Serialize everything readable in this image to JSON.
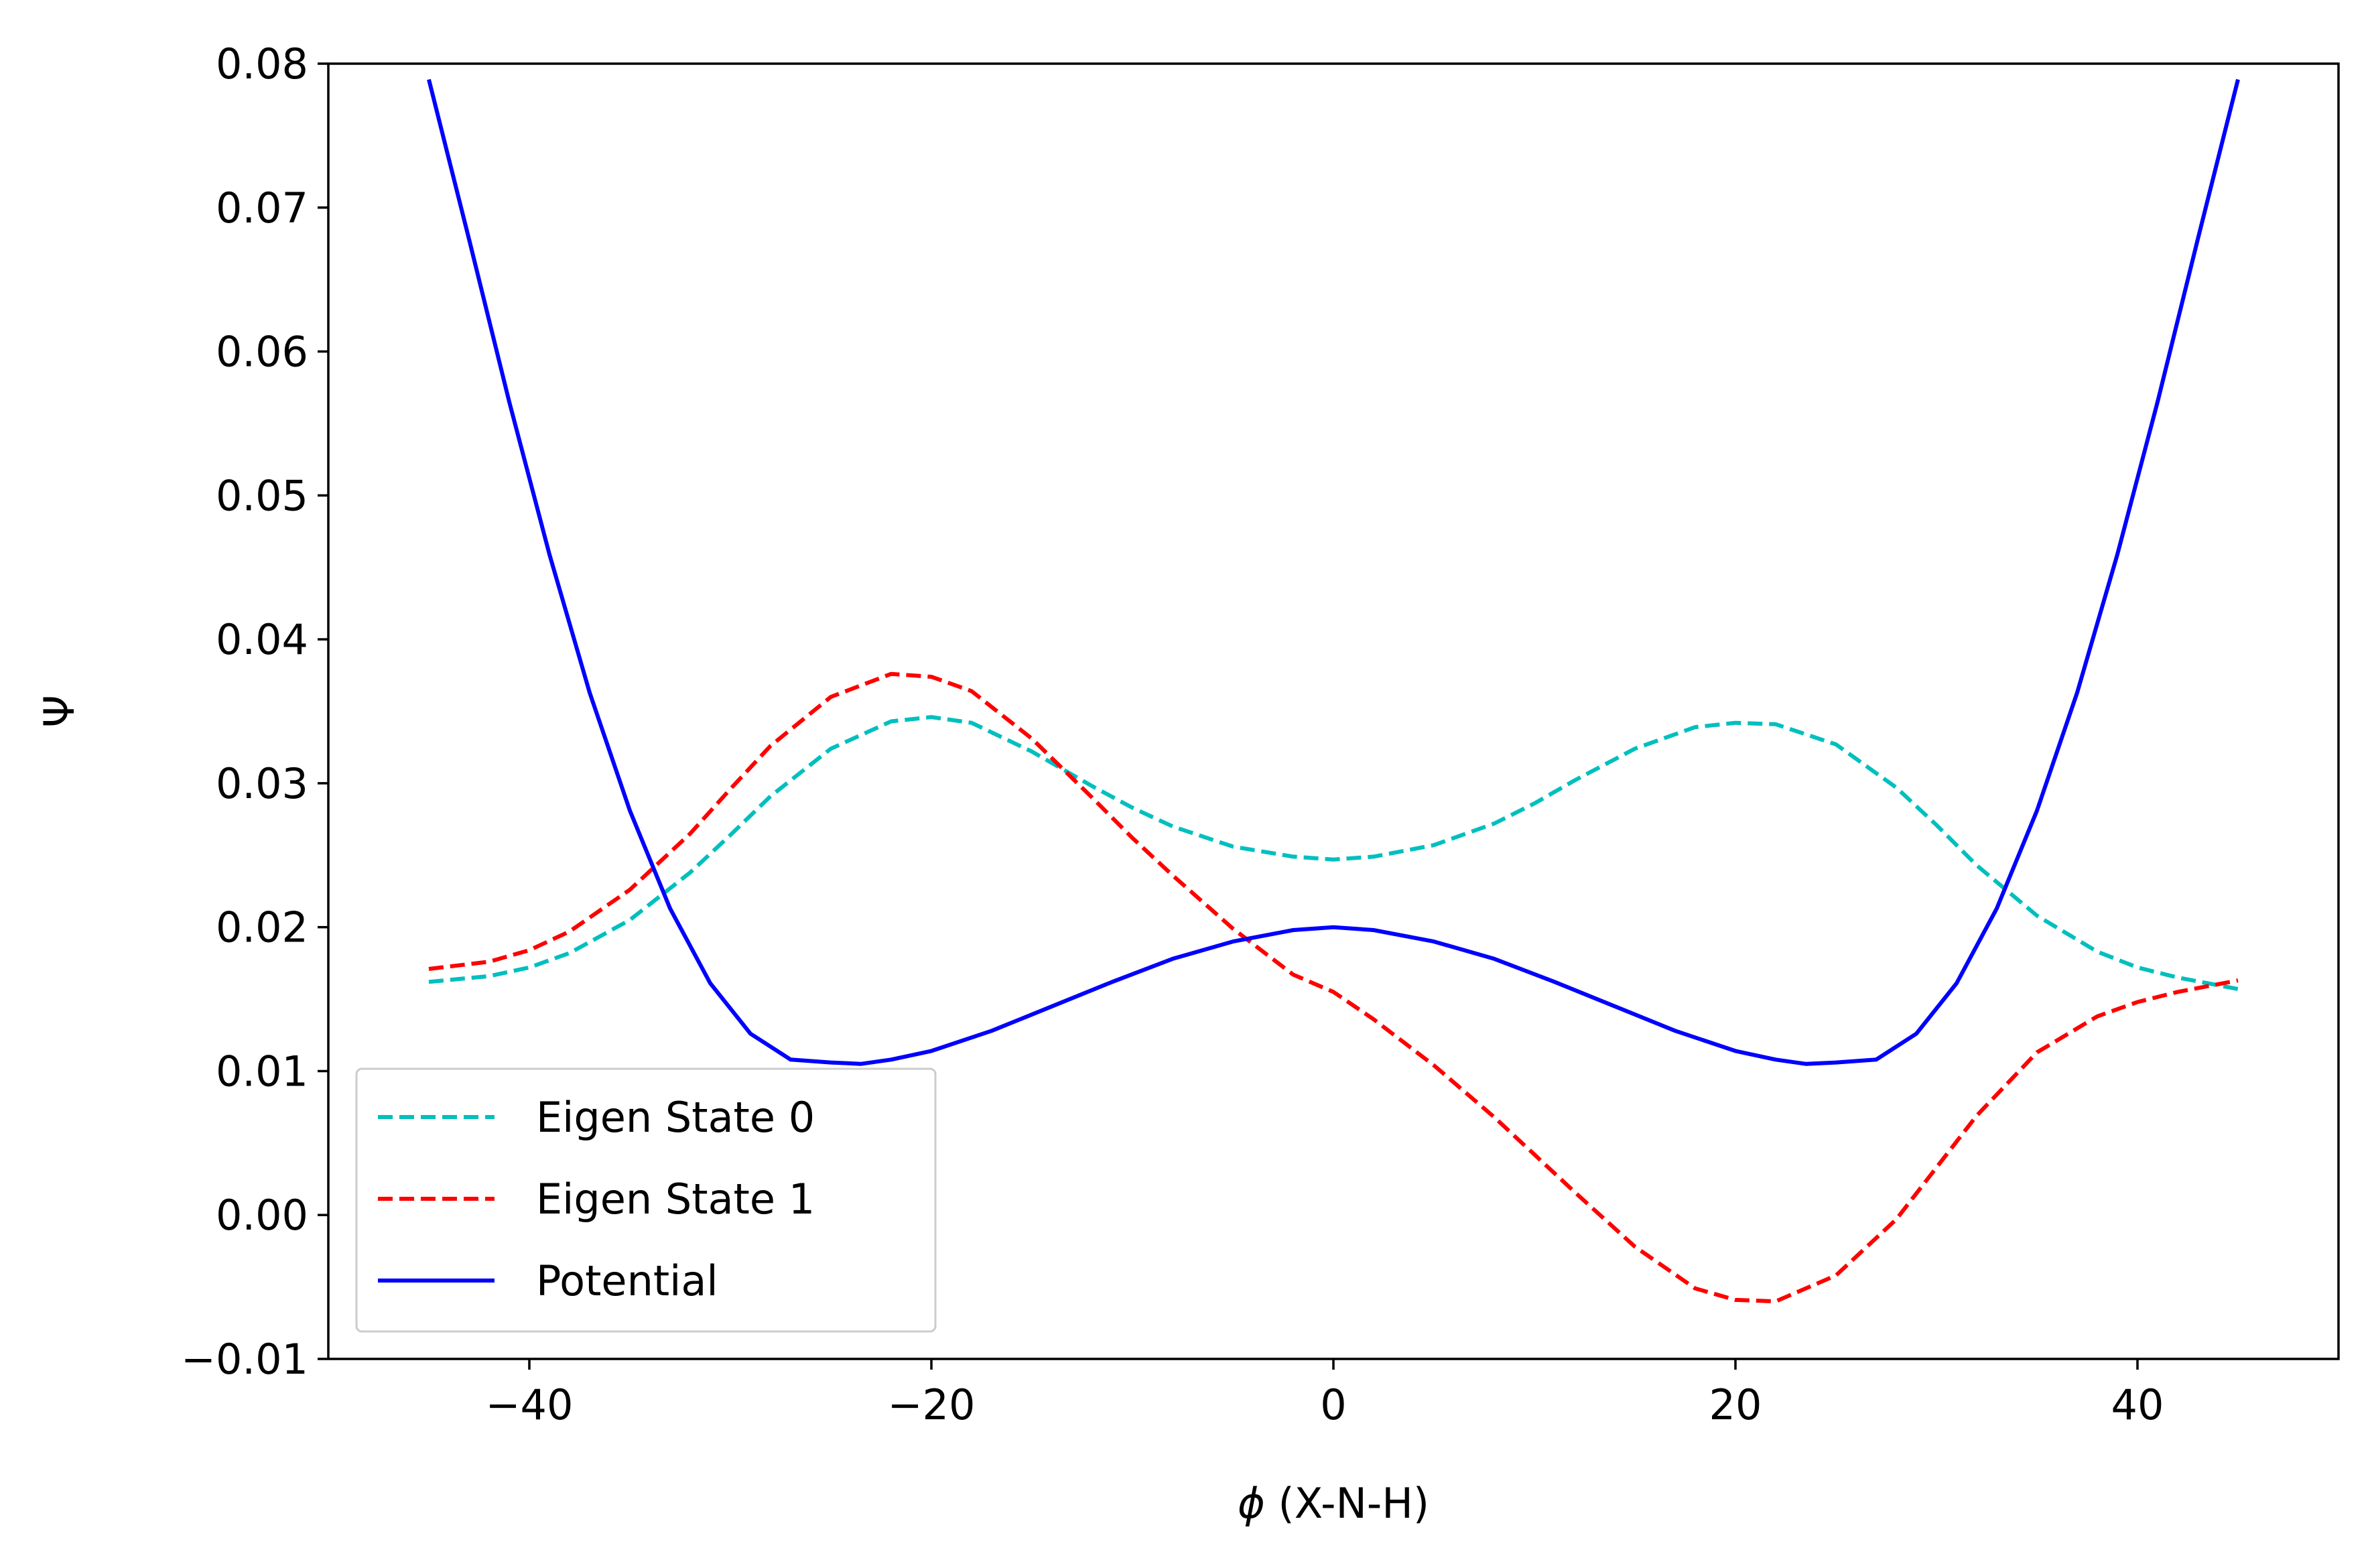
{
  "chart_data": {
    "type": "line",
    "title": "",
    "xlabel_symbol": "ϕ",
    "xlabel_text": " (X-N-H)",
    "ylabel": "Ψ",
    "xlim": [
      -50,
      50
    ],
    "ylim": [
      -0.01,
      0.08
    ],
    "grid": false,
    "legend_position": "lower-left",
    "x_ticks": [
      -40,
      -20,
      0,
      20,
      40
    ],
    "x_tick_labels": [
      "−40",
      "−20",
      "0",
      "20",
      "40"
    ],
    "y_ticks": [
      -0.01,
      0.0,
      0.01,
      0.02,
      0.03,
      0.04,
      0.05,
      0.06,
      0.07,
      0.08
    ],
    "y_tick_labels": [
      "−0.01",
      "0.00",
      "0.01",
      "0.02",
      "0.03",
      "0.04",
      "0.05",
      "0.06",
      "0.07",
      "0.08"
    ],
    "series": [
      {
        "name": "Eigen State 0",
        "color": "#00bfbf",
        "style": "dashed",
        "x": [
          -45,
          -42,
          -40,
          -38,
          -35,
          -32,
          -30,
          -28,
          -25,
          -22,
          -20,
          -18,
          -15,
          -12,
          -10,
          -8,
          -5,
          -2,
          0,
          2,
          5,
          8,
          10,
          12,
          15,
          18,
          20,
          22,
          25,
          28,
          30,
          32,
          35,
          38,
          40,
          42,
          45
        ],
        "y": [
          0.0162,
          0.0166,
          0.0172,
          0.0182,
          0.0205,
          0.0238,
          0.0264,
          0.0291,
          0.0324,
          0.0343,
          0.0346,
          0.0342,
          0.0322,
          0.0298,
          0.0283,
          0.027,
          0.0256,
          0.0249,
          0.0247,
          0.0249,
          0.0257,
          0.0272,
          0.0286,
          0.0302,
          0.0324,
          0.0339,
          0.0342,
          0.0341,
          0.0327,
          0.0297,
          0.0271,
          0.0243,
          0.0208,
          0.0183,
          0.0172,
          0.0165,
          0.0157
        ]
      },
      {
        "name": "Eigen State 1",
        "color": "#ff0000",
        "style": "dashed",
        "x": [
          -45,
          -42,
          -40,
          -38,
          -35,
          -32,
          -30,
          -28,
          -25,
          -22,
          -20,
          -18,
          -15,
          -12,
          -10,
          -8,
          -5,
          -2,
          0,
          2,
          5,
          8,
          10,
          12,
          15,
          18,
          20,
          22,
          25,
          28,
          30,
          32,
          35,
          38,
          40,
          42,
          45
        ],
        "y": [
          0.0171,
          0.0176,
          0.0184,
          0.0197,
          0.0226,
          0.0265,
          0.0296,
          0.0326,
          0.036,
          0.0376,
          0.0374,
          0.0364,
          0.0331,
          0.029,
          0.0262,
          0.0236,
          0.0199,
          0.0167,
          0.0155,
          0.0136,
          0.0104,
          0.0068,
          0.0042,
          0.0016,
          -0.0022,
          -0.0051,
          -0.0059,
          -0.006,
          -0.0042,
          -0.0003,
          0.0033,
          0.0069,
          0.0113,
          0.0138,
          0.0148,
          0.0155,
          0.0163
        ]
      },
      {
        "name": "Potential",
        "color": "#0000ff",
        "style": "solid",
        "x": [
          -45,
          -43,
          -41,
          -39,
          -37,
          -35,
          -33,
          -31,
          -29,
          -27,
          -25,
          -23.5,
          -22,
          -20,
          -17,
          -14,
          -11,
          -8,
          -5,
          -2,
          0,
          2,
          5,
          8,
          11,
          14,
          17,
          20,
          22,
          23.5,
          25,
          27,
          29,
          31,
          33,
          35,
          37,
          39,
          41,
          43,
          45
        ],
        "y": [
          0.0789,
          0.0678,
          0.0565,
          0.0459,
          0.0363,
          0.0281,
          0.0213,
          0.0161,
          0.0126,
          0.0108,
          0.0106,
          0.0105,
          0.0108,
          0.0114,
          0.0128,
          0.0145,
          0.0162,
          0.0178,
          0.019,
          0.0198,
          0.02,
          0.0198,
          0.019,
          0.0178,
          0.0162,
          0.0145,
          0.0128,
          0.0114,
          0.0108,
          0.0105,
          0.0106,
          0.0108,
          0.0126,
          0.0161,
          0.0213,
          0.0281,
          0.0363,
          0.0459,
          0.0565,
          0.0678,
          0.0789
        ]
      }
    ]
  }
}
